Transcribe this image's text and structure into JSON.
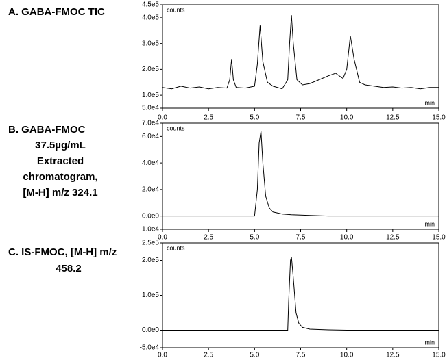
{
  "chart_data": [
    {
      "type": "line",
      "title": [
        "A.  GABA-FMOC TIC"
      ],
      "y_label": "counts",
      "x_label": "min",
      "color": "#000000",
      "x": [
        0,
        0.5,
        1.0,
        1.5,
        2.0,
        2.5,
        3.0,
        3.5,
        3.65,
        3.75,
        3.85,
        4.0,
        4.5,
        5.0,
        5.15,
        5.3,
        5.45,
        5.7,
        6.0,
        6.5,
        6.8,
        6.9,
        7.0,
        7.1,
        7.3,
        7.6,
        8.0,
        8.5,
        9.0,
        9.4,
        9.8,
        10.0,
        10.2,
        10.4,
        10.7,
        11.0,
        11.5,
        12.0,
        12.5,
        13.0,
        13.5,
        14.0,
        14.5,
        15.0
      ],
      "values": [
        130000,
        125000,
        135000,
        128000,
        132000,
        125000,
        130000,
        128000,
        160000,
        240000,
        160000,
        130000,
        128000,
        135000,
        220000,
        370000,
        230000,
        150000,
        135000,
        125000,
        160000,
        300000,
        410000,
        300000,
        160000,
        140000,
        145000,
        160000,
        175000,
        185000,
        165000,
        200000,
        330000,
        240000,
        150000,
        140000,
        135000,
        130000,
        132000,
        128000,
        130000,
        125000,
        130000,
        130000
      ],
      "xlim": [
        0,
        15
      ],
      "xticks": [
        {
          "value": 0,
          "label": "0.0"
        },
        2.5,
        {
          "value": 5,
          "label": "5.0"
        },
        7.5,
        {
          "value": 10,
          "label": "10.0"
        },
        12.5,
        {
          "value": 15,
          "label": "15.0"
        }
      ],
      "ylim": [
        50000,
        450000
      ],
      "yticks": [
        {
          "value": 450000,
          "label": "4.5e5"
        },
        {
          "value": 400000,
          "label": "4.0e5"
        },
        {
          "value": 300000,
          "label": "3.0e5"
        },
        {
          "value": 200000,
          "label": "2.0e5"
        },
        {
          "value": 100000,
          "label": "1.0e5"
        },
        {
          "value": 50000,
          "label": "5.0e4"
        }
      ]
    },
    {
      "type": "line",
      "title": [
        "B.  GABA-FMOC",
        "37.5µg/mL",
        "Extracted",
        "chromatogram,",
        "[M-H] m/z 324.1"
      ],
      "y_label": "counts",
      "x_label": "min",
      "color": "#000000",
      "x": [
        0,
        1,
        2,
        3,
        4,
        5,
        5.15,
        5.25,
        5.35,
        5.45,
        5.6,
        5.8,
        6.0,
        6.5,
        7.0,
        8.0,
        9.0,
        10,
        11,
        12,
        13,
        14,
        15
      ],
      "values": [
        0,
        0,
        0,
        0,
        0,
        0,
        20000,
        55000,
        64000,
        40000,
        15000,
        6000,
        3000,
        1500,
        1000,
        500,
        0,
        0,
        0,
        0,
        0,
        0,
        0
      ],
      "xlim": [
        0,
        15
      ],
      "xticks": [
        {
          "value": 0,
          "label": "0.0"
        },
        2.5,
        {
          "value": 5,
          "label": "5.0"
        },
        7.5,
        {
          "value": 10,
          "label": "10.0"
        },
        12.5,
        {
          "value": 15,
          "label": "15.0"
        }
      ],
      "ylim": [
        -10000,
        70000
      ],
      "yticks": [
        {
          "value": 70000,
          "label": "7.0e4"
        },
        {
          "value": 60000,
          "label": "6.0e4"
        },
        {
          "value": 40000,
          "label": "4.0e4"
        },
        {
          "value": 20000,
          "label": "2.0e4"
        },
        {
          "value": 0,
          "label": "0.0e0"
        },
        {
          "value": -10000,
          "label": "-1.0e4"
        }
      ]
    },
    {
      "type": "line",
      "title": [
        "C.  IS-FMOC, [M-H] m/z",
        "458.2"
      ],
      "y_label": "counts",
      "x_label": "min",
      "color": "#000000",
      "x": [
        0,
        1,
        2,
        3,
        4,
        5,
        6,
        6.8,
        6.85,
        6.95,
        7.0,
        7.1,
        7.25,
        7.4,
        7.6,
        8.0,
        9.0,
        10,
        11,
        12,
        13,
        14,
        15
      ],
      "values": [
        0,
        0,
        0,
        0,
        0,
        0,
        0,
        0,
        80000,
        200000,
        210000,
        150000,
        50000,
        20000,
        8000,
        3000,
        1000,
        0,
        0,
        0,
        0,
        0,
        0
      ],
      "xlim": [
        0,
        15
      ],
      "xticks": [
        {
          "value": 0,
          "label": "0.0"
        },
        2.5,
        {
          "value": 5,
          "label": "5.0"
        },
        7.5,
        {
          "value": 10,
          "label": "10.0"
        },
        12.5,
        {
          "value": 15,
          "label": "15.0"
        }
      ],
      "ylim": [
        -50000,
        250000
      ],
      "yticks": [
        {
          "value": 250000,
          "label": "2.5e5"
        },
        {
          "value": 200000,
          "label": "2.0e5"
        },
        {
          "value": 100000,
          "label": "1.0e5"
        },
        {
          "value": 0,
          "label": "0.0e0"
        },
        {
          "value": -50000,
          "label": "-5.0e4"
        }
      ]
    }
  ]
}
